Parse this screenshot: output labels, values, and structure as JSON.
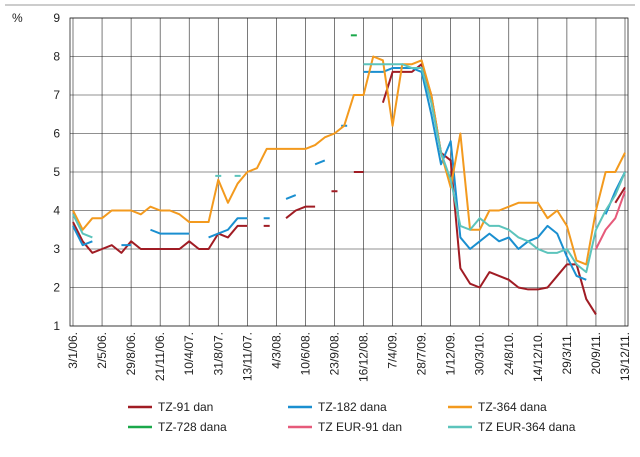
{
  "chart_data": {
    "type": "line",
    "y_label": "%",
    "categories": [
      "3/1/06.",
      null,
      null,
      "2/5/06.",
      null,
      null,
      "29/8/06.",
      null,
      null,
      "21/11/06.",
      null,
      null,
      "10/4/07.",
      null,
      null,
      "31/8/07.",
      null,
      null,
      "13/11/07.",
      null,
      null,
      "4/3/08.",
      null,
      null,
      "10/6/08.",
      null,
      null,
      "23/9/08.",
      null,
      null,
      "16/12/08.",
      null,
      null,
      "7/4/09.",
      null,
      null,
      "28/7/09.",
      null,
      null,
      "1/12/09.",
      null,
      null,
      "30/3/10.",
      null,
      null,
      "24/8/10.",
      null,
      null,
      "14/12/10.",
      null,
      null,
      "29/3/11.",
      null,
      null,
      "20/9/11.",
      null,
      null,
      "13/12/11."
    ],
    "ylim": [
      1,
      9
    ],
    "yticks": [
      1,
      2,
      3,
      4,
      5,
      6,
      7,
      8,
      9
    ],
    "grid": true,
    "series": [
      {
        "name": "TZ-91 dan",
        "color": "#a01c24",
        "values": [
          3.7,
          3.2,
          2.9,
          3.0,
          3.1,
          2.9,
          3.2,
          3.0,
          3.0,
          3.0,
          3.0,
          3.0,
          3.2,
          3.0,
          3.0,
          3.4,
          3.3,
          3.6,
          3.6,
          null,
          3.6,
          null,
          3.8,
          4.0,
          4.1,
          4.1,
          null,
          4.5,
          null,
          5.0,
          5.0,
          null,
          6.8,
          7.6,
          7.6,
          7.6,
          7.8,
          7.0,
          5.5,
          5.3,
          2.5,
          2.1,
          2.0,
          2.4,
          2.3,
          2.2,
          2.0,
          1.95,
          1.95,
          2.0,
          2.3,
          2.6,
          2.6,
          1.7,
          1.3,
          null,
          4.2,
          4.6
        ]
      },
      {
        "name": "TZ-182 dana",
        "color": "#1a8fd0",
        "values": [
          3.6,
          3.1,
          3.2,
          null,
          null,
          3.1,
          3.1,
          null,
          3.5,
          3.4,
          3.4,
          3.4,
          3.4,
          null,
          3.3,
          3.4,
          3.5,
          3.8,
          3.8,
          null,
          3.8,
          null,
          4.3,
          4.4,
          null,
          5.2,
          5.3,
          null,
          6.2,
          null,
          7.6,
          7.6,
          7.6,
          7.7,
          7.7,
          7.7,
          7.6,
          6.5,
          5.2,
          5.8,
          3.3,
          3.0,
          3.2,
          3.4,
          3.2,
          3.3,
          3.0,
          3.2,
          3.3,
          3.6,
          3.4,
          2.8,
          2.3,
          2.2,
          null,
          3.9,
          4.5,
          5.0
        ]
      },
      {
        "name": "TZ-364 dana",
        "color": "#f39a1e",
        "values": [
          4.0,
          3.5,
          3.8,
          3.8,
          4.0,
          4.0,
          4.0,
          3.9,
          4.1,
          4.0,
          4.0,
          3.9,
          3.7,
          3.7,
          3.7,
          4.8,
          4.2,
          4.7,
          5.0,
          5.1,
          5.6,
          5.6,
          5.6,
          5.6,
          5.6,
          5.7,
          5.9,
          6.0,
          6.2,
          7.0,
          7.0,
          8.0,
          7.9,
          6.2,
          7.8,
          7.8,
          7.9,
          7.0,
          5.5,
          4.6,
          6.0,
          3.5,
          3.5,
          4.0,
          4.0,
          4.1,
          4.2,
          4.2,
          4.2,
          3.8,
          4.0,
          3.6,
          2.7,
          2.6,
          4.0,
          5.0,
          5.0,
          5.5
        ]
      },
      {
        "name": "TZ-728 dana",
        "color": "#1aa84a",
        "values": [
          null,
          null,
          null,
          null,
          null,
          null,
          null,
          null,
          null,
          null,
          null,
          null,
          null,
          null,
          null,
          null,
          null,
          null,
          null,
          null,
          null,
          null,
          null,
          null,
          null,
          null,
          null,
          null,
          null,
          8.55,
          null,
          null,
          null,
          null,
          null,
          null,
          null,
          null,
          null,
          null,
          null,
          null,
          null,
          null,
          null,
          null,
          null,
          null,
          null,
          null,
          null,
          null,
          null,
          null,
          null,
          null,
          null,
          null
        ]
      },
      {
        "name": "TZ EUR-91 dan",
        "color": "#e65a7a",
        "values": [
          null,
          null,
          null,
          null,
          null,
          null,
          null,
          null,
          null,
          null,
          null,
          null,
          null,
          null,
          null,
          null,
          null,
          null,
          null,
          null,
          null,
          null,
          null,
          null,
          null,
          null,
          null,
          null,
          null,
          null,
          null,
          null,
          null,
          null,
          null,
          null,
          null,
          null,
          null,
          null,
          null,
          null,
          null,
          null,
          null,
          null,
          null,
          null,
          null,
          null,
          null,
          null,
          null,
          null,
          3.0,
          3.5,
          3.8,
          4.5
        ]
      },
      {
        "name": "TZ EUR-364 dana",
        "color": "#5cc4bc",
        "values": [
          3.9,
          3.4,
          3.3,
          null,
          null,
          null,
          null,
          null,
          null,
          null,
          null,
          null,
          null,
          null,
          null,
          4.9,
          null,
          4.9,
          null,
          null,
          null,
          null,
          null,
          null,
          null,
          null,
          null,
          null,
          null,
          null,
          7.8,
          7.8,
          7.8,
          7.8,
          7.8,
          7.7,
          7.7,
          6.8,
          5.5,
          4.8,
          3.6,
          3.5,
          3.8,
          3.6,
          3.6,
          3.5,
          3.3,
          3.2,
          3.0,
          2.9,
          2.9,
          3.0,
          2.6,
          2.4,
          3.5,
          4.0,
          4.4,
          5.0
        ]
      }
    ]
  }
}
